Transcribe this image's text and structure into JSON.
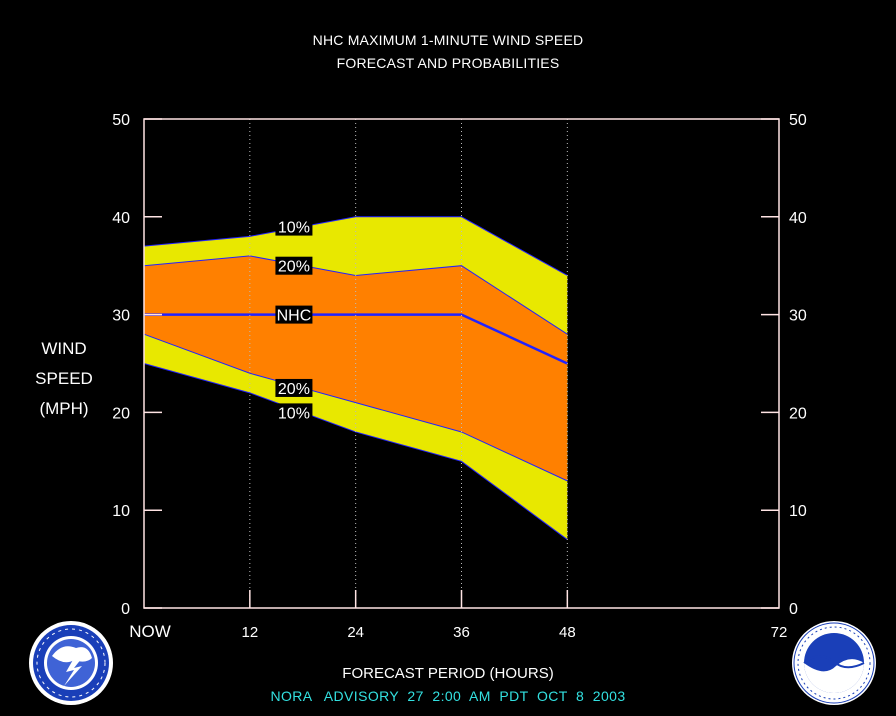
{
  "header": {
    "title_line1": "NHC MAXIMUM 1-MINUTE WIND SPEED",
    "title_line2": "FORECAST AND PROBABILITIES"
  },
  "axes": {
    "ylabel_lines": [
      "WIND",
      "SPEED",
      "(MPH)"
    ],
    "xlabel": "FORECAST PERIOD (HOURS)"
  },
  "footer": {
    "advisory": "NORA   ADVISORY  27  2:00  AM  PDT  OCT  8  2003"
  },
  "colors": {
    "band_10_90": "#e8e800",
    "band_20_80": "#ff8000",
    "forecast_line": "#2222ff",
    "frame": "#ffe4e4",
    "background": "#000000",
    "footer_text": "#33e0e0"
  },
  "logos": {
    "left": "nws-logo-icon",
    "right": "noaa-logo-icon"
  },
  "chart_data": {
    "type": "area",
    "title": "NHC MAXIMUM 1-MINUTE WIND SPEED",
    "subtitle": "FORECAST AND PROBABILITIES",
    "xlabel": "FORECAST PERIOD (HOURS)",
    "ylabel": "WIND SPEED (MPH)",
    "x": [
      0,
      12,
      24,
      36,
      48
    ],
    "xlim": [
      0,
      72
    ],
    "ylim": [
      0,
      50
    ],
    "xticks": [
      0,
      12,
      24,
      36,
      48,
      72
    ],
    "xtick_labels": [
      "NOW",
      "12",
      "24",
      "36",
      "48",
      "72"
    ],
    "yticks": [
      0,
      10,
      20,
      30,
      40,
      50
    ],
    "ytick_labels": [
      "0",
      "10",
      "20",
      "30",
      "40",
      "50"
    ],
    "grid": "vertical dotted at 12, 24, 36, 48",
    "series": [
      {
        "name": "10%",
        "role": "upper",
        "values": [
          37,
          38,
          40,
          40,
          34
        ]
      },
      {
        "name": "20%",
        "role": "upper",
        "values": [
          35,
          36,
          34,
          35,
          28
        ]
      },
      {
        "name": "NHC",
        "role": "forecast",
        "values": [
          30,
          30,
          30,
          30,
          25
        ]
      },
      {
        "name": "20%",
        "role": "lower",
        "values": [
          28,
          24,
          21,
          18,
          13
        ]
      },
      {
        "name": "10%",
        "role": "lower",
        "values": [
          25,
          22,
          18,
          15,
          7
        ]
      }
    ],
    "annotations": [
      {
        "text": "10%",
        "x": 17,
        "y": 39
      },
      {
        "text": "20%",
        "x": 17,
        "y": 35
      },
      {
        "text": "NHC",
        "x": 17,
        "y": 30
      },
      {
        "text": "20%",
        "x": 17,
        "y": 22.5
      },
      {
        "text": "10%",
        "x": 17,
        "y": 20
      }
    ]
  }
}
